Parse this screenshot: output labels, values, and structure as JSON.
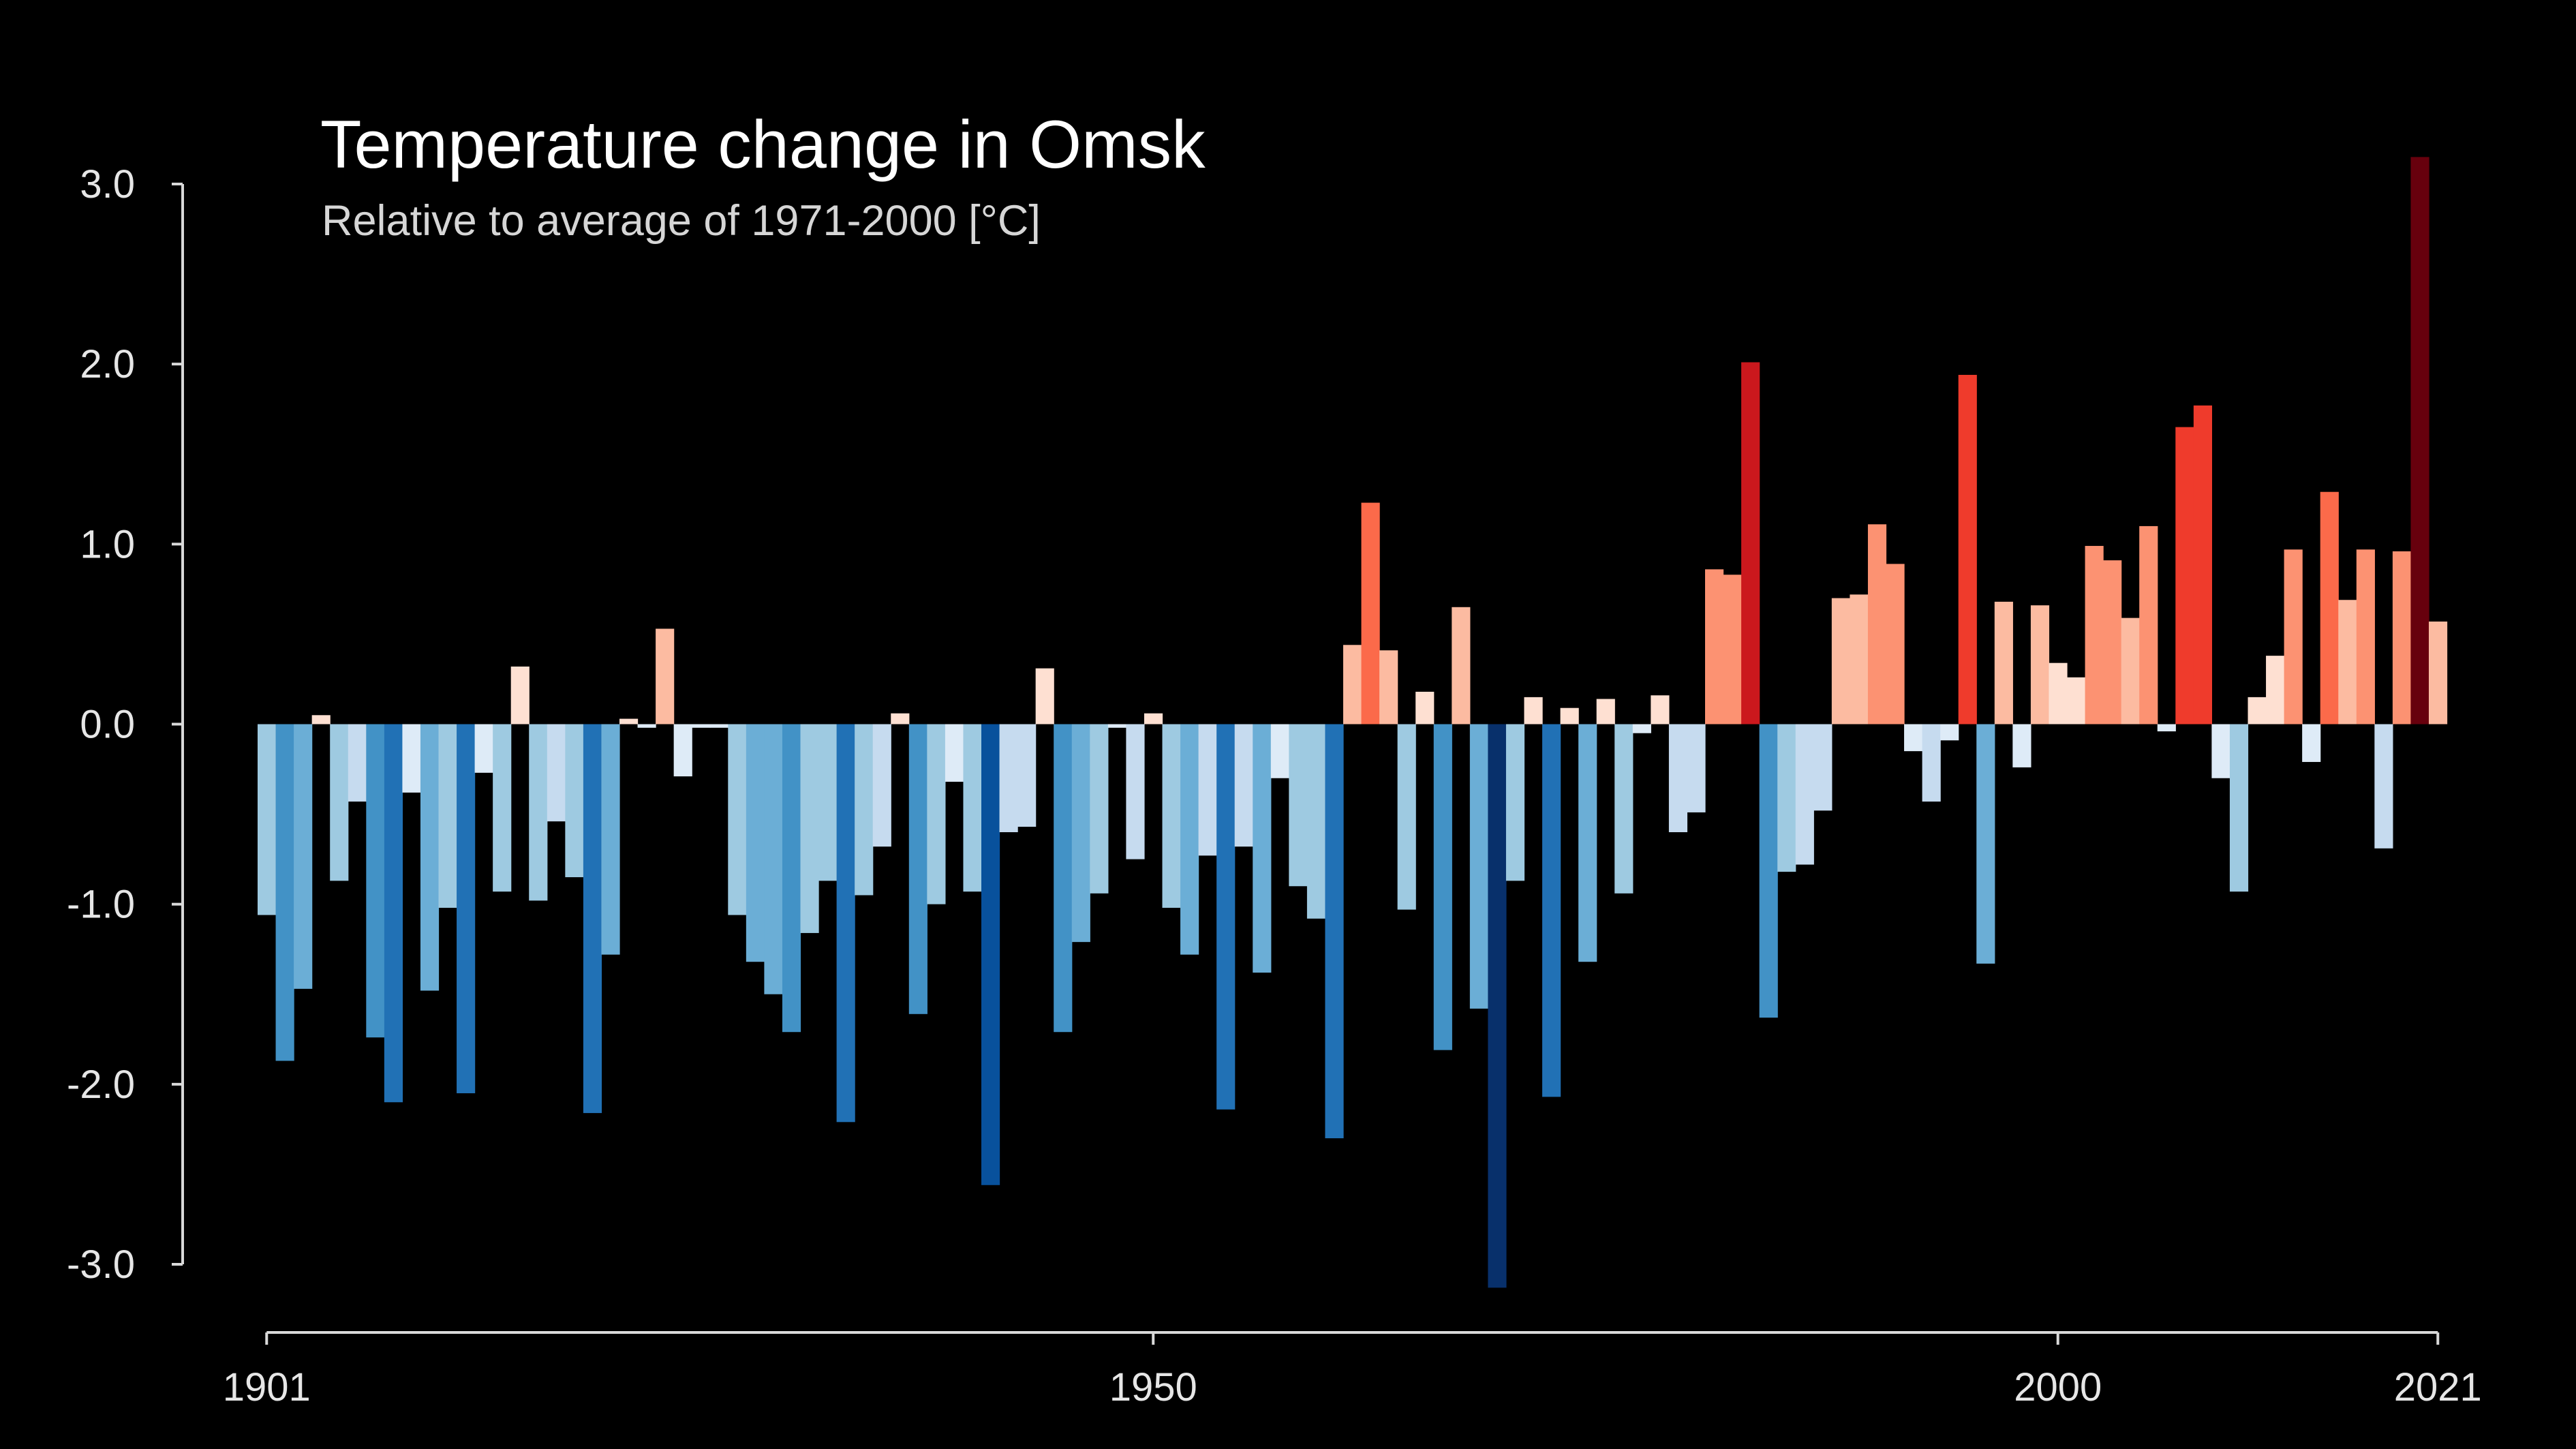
{
  "chart_data": {
    "type": "bar",
    "title": "Temperature change in Omsk",
    "subtitle": "Relative to average of 1971-2000  [°C]",
    "xlabel": "",
    "ylabel": "",
    "ylim": [
      -3.0,
      3.0
    ],
    "x_ticks": [
      "1901",
      "1950",
      "2000",
      "2021"
    ],
    "y_ticks": [
      "3.0",
      "2.0",
      "1.0",
      "0.0",
      "-1.0",
      "-2.0",
      "-3.0"
    ],
    "grid": false,
    "legend": "none",
    "color_scale": [
      "#08306b",
      "#08519c",
      "#2171b5",
      "#4292c6",
      "#6baed6",
      "#9ecae1",
      "#c6dbef",
      "#deebf7",
      "#fee0d2",
      "#fcbba1",
      "#fc9272",
      "#fb6a4a",
      "#ef3b2c",
      "#cb181d",
      "#a50f15",
      "#67000d"
    ],
    "years": [
      1901,
      1902,
      1903,
      1904,
      1905,
      1906,
      1907,
      1908,
      1909,
      1910,
      1911,
      1912,
      1913,
      1914,
      1915,
      1916,
      1917,
      1918,
      1919,
      1920,
      1921,
      1922,
      1923,
      1924,
      1925,
      1926,
      1927,
      1928,
      1929,
      1930,
      1931,
      1932,
      1933,
      1934,
      1935,
      1936,
      1937,
      1938,
      1939,
      1940,
      1941,
      1942,
      1943,
      1944,
      1945,
      1946,
      1947,
      1948,
      1949,
      1950,
      1951,
      1952,
      1953,
      1954,
      1955,
      1956,
      1957,
      1958,
      1959,
      1960,
      1961,
      1962,
      1963,
      1964,
      1965,
      1966,
      1967,
      1968,
      1969,
      1970,
      1971,
      1972,
      1973,
      1974,
      1975,
      1976,
      1977,
      1978,
      1979,
      1980,
      1981,
      1982,
      1983,
      1984,
      1985,
      1986,
      1987,
      1988,
      1989,
      1990,
      1991,
      1992,
      1993,
      1994,
      1995,
      1996,
      1997,
      1998,
      1999,
      2000,
      2001,
      2002,
      2003,
      2004,
      2005,
      2006,
      2007,
      2008,
      2009,
      2010,
      2011,
      2012,
      2013,
      2014,
      2015,
      2016,
      2017,
      2018,
      2019,
      2020,
      2021
    ],
    "values": [
      -1.06,
      -1.87,
      -1.47,
      0.05,
      -0.87,
      -0.43,
      -1.74,
      -2.1,
      -0.38,
      -1.48,
      -1.02,
      -2.05,
      -0.27,
      -0.93,
      0.32,
      -0.98,
      -0.54,
      -0.85,
      -2.16,
      -1.28,
      0.03,
      -0.02,
      0.53,
      -0.29,
      -0.02,
      -0.02,
      -1.06,
      -1.32,
      -1.5,
      -1.71,
      -1.16,
      -0.87,
      -2.21,
      -0.95,
      -0.68,
      0.06,
      -1.61,
      -1.0,
      -0.32,
      -0.93,
      -2.56,
      -0.6,
      -0.57,
      0.31,
      -1.71,
      -1.21,
      -0.94,
      -0.02,
      -0.75,
      0.06,
      -1.02,
      -1.28,
      -0.73,
      -2.14,
      -0.68,
      -1.38,
      -0.3,
      -0.9,
      -1.08,
      -2.3,
      0.44,
      1.23,
      0.41,
      -1.03,
      0.18,
      -1.81,
      0.65,
      -1.58,
      -3.13,
      -0.87,
      0.15,
      -2.07,
      0.09,
      -1.32,
      0.14,
      -0.94,
      -0.05,
      0.16,
      -0.6,
      -0.49,
      0.86,
      0.83,
      2.01,
      -1.63,
      -0.82,
      -0.78,
      -0.48,
      0.7,
      0.72,
      1.11,
      0.89,
      -0.15,
      -0.43,
      -0.09,
      1.94,
      -1.33,
      0.68,
      -0.24,
      0.66,
      0.34,
      0.26,
      0.99,
      0.91,
      0.59,
      1.1,
      -0.04,
      1.65,
      1.77,
      -0.3,
      -0.93,
      0.15,
      0.38,
      0.97,
      -0.21,
      1.29,
      0.69,
      0.97,
      -0.69,
      0.96,
      3.15,
      0.57
    ]
  }
}
